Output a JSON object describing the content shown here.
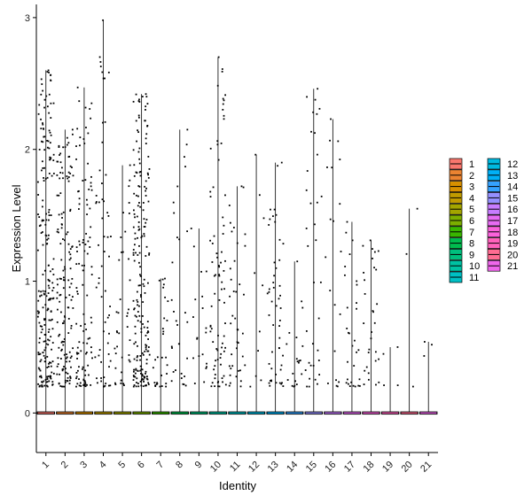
{
  "chart_data": {
    "type": "violin",
    "xlabel": "Identity",
    "ylabel": "Expression Level",
    "ylim": [
      -0.3,
      3.1
    ],
    "yticks": [
      0,
      1,
      2,
      3
    ],
    "categories": [
      "1",
      "2",
      "3",
      "4",
      "5",
      "6",
      "7",
      "8",
      "9",
      "10",
      "11",
      "12",
      "13",
      "14",
      "15",
      "16",
      "17",
      "18",
      "19",
      "20",
      "21"
    ],
    "colors": [
      "#F8766D",
      "#EA8331",
      "#D89000",
      "#C09B00",
      "#A3A500",
      "#7CAE00",
      "#39B600",
      "#00BB4E",
      "#00BF7D",
      "#00C1A3",
      "#00BFC4",
      "#00BAE0",
      "#00B0F6",
      "#35A2FF",
      "#9590FF",
      "#C77CFF",
      "#E76BF3",
      "#FA62DB",
      "#FF62BC",
      "#FF6C91",
      "#EF67EB"
    ],
    "max_values": [
      2.6,
      2.15,
      2.47,
      2.98,
      1.88,
      2.42,
      1.02,
      2.15,
      1.4,
      2.7,
      1.72,
      1.96,
      1.9,
      1.15,
      2.46,
      2.23,
      1.45,
      1.31,
      0.5,
      1.55,
      0.54
    ],
    "point_counts": [
      220,
      150,
      110,
      60,
      40,
      200,
      30,
      30,
      20,
      80,
      40,
      10,
      50,
      20,
      35,
      20,
      30,
      30,
      4,
      3,
      3
    ],
    "legend": {
      "columns": [
        [
          "1",
          "2",
          "3",
          "4",
          "5",
          "6",
          "7",
          "8",
          "9",
          "10",
          "11"
        ],
        [
          "12",
          "13",
          "14",
          "15",
          "16",
          "17",
          "18",
          "19",
          "20",
          "21"
        ]
      ]
    }
  }
}
